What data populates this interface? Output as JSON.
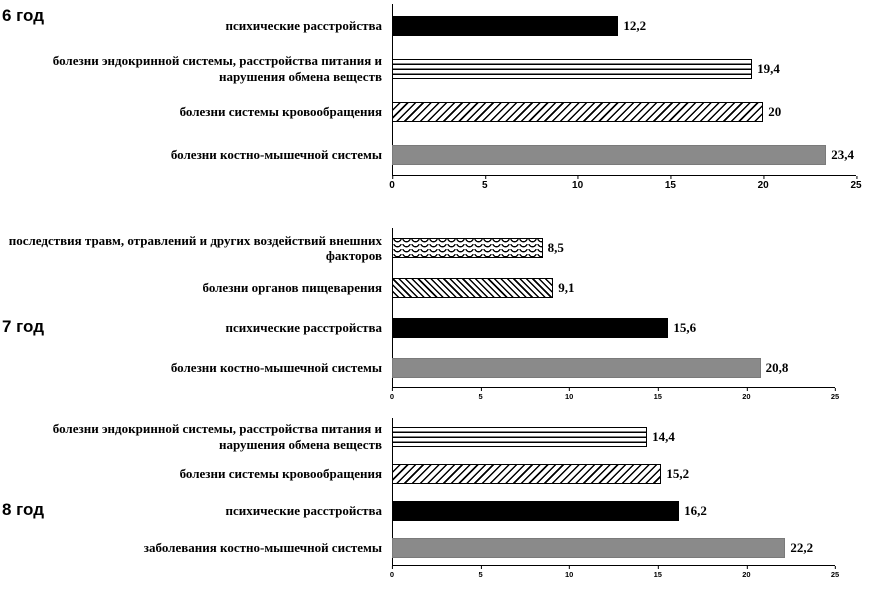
{
  "colors": {
    "bar_black": "#000000",
    "bar_gray": "#8a8a8a",
    "axis": "#000000",
    "background": "#ffffff"
  },
  "chart_data": [
    {
      "type": "bar",
      "orientation": "horizontal",
      "year_label": "6 год",
      "xlim": [
        0,
        25
      ],
      "x_ticks": [
        "0",
        "5",
        "10",
        "15",
        "20",
        "25"
      ],
      "grid": false,
      "legend": false,
      "bars": [
        {
          "label": "психические  расстройства",
          "value": 12.2,
          "value_label": "12,2",
          "pattern": "solid-black"
        },
        {
          "label": "болезни эндокринной системы, расстройства питания и нарушения  обмена веществ",
          "value": 19.4,
          "value_label": "19,4",
          "pattern": "hlines"
        },
        {
          "label": "болезни системы кровообращения",
          "value": 20,
          "value_label": "20",
          "pattern": "diag-down"
        },
        {
          "label": "болезни костно-мышечной системы",
          "value": 23.4,
          "value_label": "23,4",
          "pattern": "solid-gray"
        }
      ]
    },
    {
      "type": "bar",
      "orientation": "horizontal",
      "year_label": "7 год",
      "xlim": [
        0,
        25
      ],
      "x_ticks": [
        "0",
        "5",
        "10",
        "15",
        "20",
        "25"
      ],
      "grid": false,
      "legend": false,
      "bars": [
        {
          "label": "последствия травм, отравлений и других воздействий внешних  факторов",
          "value": 8.5,
          "value_label": "8,5",
          "pattern": "waves"
        },
        {
          "label": "болезни органов пищеварения",
          "value": 9.1,
          "value_label": "9,1",
          "pattern": "diag-up"
        },
        {
          "label": "психические  расстройства",
          "value": 15.6,
          "value_label": "15,6",
          "pattern": "solid-black"
        },
        {
          "label": "болезни костно-мышечной системы",
          "value": 20.8,
          "value_label": "20,8",
          "pattern": "solid-gray"
        }
      ]
    },
    {
      "type": "bar",
      "orientation": "horizontal",
      "year_label": "8 год",
      "xlim": [
        0,
        25
      ],
      "x_ticks": [
        "0",
        "5",
        "10",
        "15",
        "20",
        "25"
      ],
      "grid": false,
      "legend": false,
      "bars": [
        {
          "label": "болезни эндокринной системы, расстройства питания и нарушения  обмена веществ",
          "value": 14.4,
          "value_label": "14,4",
          "pattern": "hlines"
        },
        {
          "label": "болезни системы кровообращения",
          "value": 15.2,
          "value_label": "15,2",
          "pattern": "diag-down"
        },
        {
          "label": "психические  расстройства",
          "value": 16.2,
          "value_label": "16,2",
          "pattern": "solid-black"
        },
        {
          "label": "заболевания костно-мышечной системы",
          "value": 22.2,
          "value_label": "22,2",
          "pattern": "solid-gray"
        }
      ]
    }
  ]
}
